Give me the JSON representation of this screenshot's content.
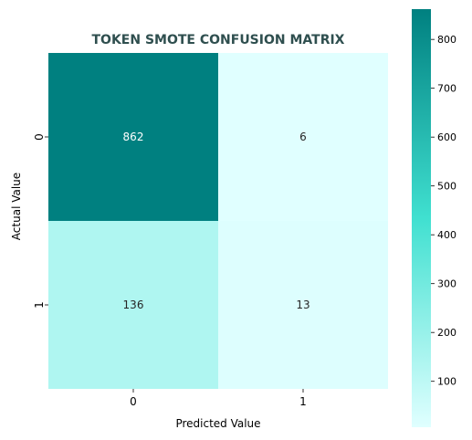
{
  "chart_data": {
    "type": "heatmap",
    "title": "TOKEN SMOTE CONFUSION MATRIX",
    "xlabel": "Predicted Value",
    "ylabel": "Actual Value",
    "x_categories": [
      "0",
      "1"
    ],
    "y_categories": [
      "0",
      "1"
    ],
    "values": [
      [
        862,
        6
      ],
      [
        136,
        13
      ]
    ],
    "colorbar": {
      "min": 6,
      "max": 862,
      "ticks": [
        100,
        200,
        300,
        400,
        500,
        600,
        700,
        800
      ],
      "tick_labels": [
        "100",
        "200",
        "300",
        "400",
        "500",
        "600",
        "700",
        "800"
      ],
      "colors": [
        "#e0ffff",
        "#40e0d0",
        "#008080"
      ]
    },
    "annotation_colors": {
      "dark": "#ffffff",
      "light": "#262626"
    },
    "title_color": "#2f4f4f"
  }
}
